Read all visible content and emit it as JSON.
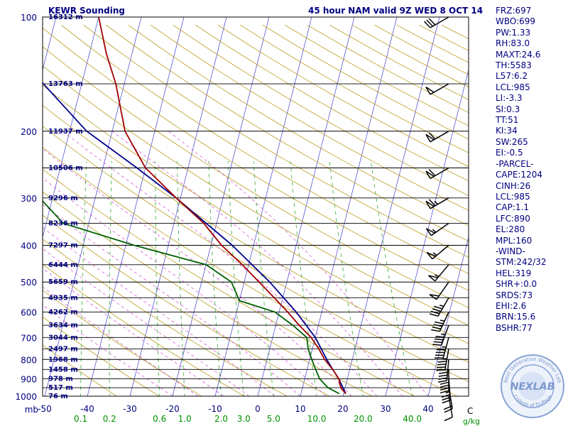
{
  "header": {
    "station": "KEWR Sounding",
    "valid": "45 hour NAM valid 9Z WED  8 OCT 14"
  },
  "indices": [
    "FRZ:697",
    "WBO:699",
    "PW:1.33",
    "RH:83.0",
    "MAXT:24.6",
    "TH:5583",
    "L57:6.2",
    "LCL:985",
    "LI:-3.3",
    "SI:0.3",
    "TT:51",
    "KI:34",
    "SW:265",
    "EI:-0.5",
    "-PARCEL-",
    "CAPE:1204",
    "CINH:26",
    "LCL:985",
    "CAP:1.1",
    "LFC:890",
    "EL:280",
    "MPL:160",
    "-WIND-",
    "STM:242/32",
    "HEL:319",
    "SHR+:0.0",
    "SRDS:73",
    "EHI:2.6",
    "BRN:15.6",
    "BSHR:77"
  ],
  "logo": {
    "text": "NEXLAB",
    "ring_top": "Next Generation Weather Lab",
    "ring_bottom": "College of DuPage"
  },
  "colors": {
    "temperature": "#a00000",
    "dewpoint": "#006000",
    "parcel": "#00008c",
    "isotherm": "#4040d0",
    "dry_adiabat": "#b09000",
    "mixing_ratio": "#33aa33",
    "moist_adiabat": "#d040d0",
    "text": "#000080",
    "tick_green": "#009000"
  },
  "chart_data": {
    "type": "skew-t",
    "pressure_unit_label": "mb",
    "pressure_ticks": [
      100,
      200,
      300,
      400,
      500,
      600,
      700,
      800,
      900,
      1000
    ],
    "temperature_ticks": [
      -50,
      -40,
      -30,
      -20,
      -10,
      0,
      10,
      20,
      30,
      40
    ],
    "mixing_ratio_label": "g/kg",
    "mixing_ratio_ticks": [
      "0.1",
      "0.2",
      "0.6",
      "1.0",
      "2.0",
      "3.0",
      "5.0",
      "10.0",
      "20.0",
      "40.0"
    ],
    "heights": [
      {
        "p": 100,
        "label": "16312 m"
      },
      {
        "p": 150,
        "label": "13763 m"
      },
      {
        "p": 200,
        "label": "11937 m"
      },
      {
        "p": 250,
        "label": "10506 m"
      },
      {
        "p": 300,
        "label": "9296 m"
      },
      {
        "p": 350,
        "label": "8236 m"
      },
      {
        "p": 400,
        "label": "7297 m"
      },
      {
        "p": 450,
        "label": "6444 m"
      },
      {
        "p": 500,
        "label": "5659 m"
      },
      {
        "p": 550,
        "label": "4935 m"
      },
      {
        "p": 600,
        "label": "4262 m"
      },
      {
        "p": 650,
        "label": "3634 m"
      },
      {
        "p": 700,
        "label": "3044 m"
      },
      {
        "p": 750,
        "label": "2497 m"
      },
      {
        "p": 800,
        "label": "1968 m"
      },
      {
        "p": 850,
        "label": "1458 m"
      },
      {
        "p": 900,
        "label": "978 m"
      },
      {
        "p": 950,
        "label": "517 m"
      },
      {
        "p": 1000,
        "label": "76 m"
      }
    ],
    "temperature": [
      {
        "p": 985,
        "t": 20.5
      },
      {
        "p": 950,
        "t": 19
      },
      {
        "p": 900,
        "t": 18
      },
      {
        "p": 850,
        "t": 16
      },
      {
        "p": 800,
        "t": 13.5
      },
      {
        "p": 750,
        "t": 11.5
      },
      {
        "p": 700,
        "t": 9
      },
      {
        "p": 650,
        "t": 5.5
      },
      {
        "p": 600,
        "t": 2
      },
      {
        "p": 550,
        "t": -2
      },
      {
        "p": 500,
        "t": -6.5
      },
      {
        "p": 450,
        "t": -11.5
      },
      {
        "p": 400,
        "t": -17.5
      },
      {
        "p": 350,
        "t": -23
      },
      {
        "p": 300,
        "t": -31
      },
      {
        "p": 250,
        "t": -40
      },
      {
        "p": 200,
        "t": -47
      },
      {
        "p": 150,
        "t": -52
      },
      {
        "p": 125,
        "t": -56
      },
      {
        "p": 100,
        "t": -60
      }
    ],
    "dewpoint": [
      {
        "p": 985,
        "td": 19
      },
      {
        "p": 950,
        "td": 16
      },
      {
        "p": 900,
        "td": 13.5
      },
      {
        "p": 850,
        "td": 12
      },
      {
        "p": 800,
        "td": 10.5
      },
      {
        "p": 750,
        "td": 9
      },
      {
        "p": 700,
        "td": 8
      },
      {
        "p": 650,
        "td": 4
      },
      {
        "p": 600,
        "td": -1
      },
      {
        "p": 560,
        "td": -10
      },
      {
        "p": 500,
        "td": -13
      },
      {
        "p": 450,
        "td": -20
      },
      {
        "p": 400,
        "td": -38
      },
      {
        "p": 350,
        "td": -56
      },
      {
        "p": 300,
        "td": -63
      }
    ],
    "parcel": [
      {
        "p": 985,
        "t": 20.5
      },
      {
        "p": 950,
        "t": 19.5
      },
      {
        "p": 900,
        "t": 18
      },
      {
        "p": 850,
        "t": 16
      },
      {
        "p": 800,
        "t": 14
      },
      {
        "p": 700,
        "t": 10
      },
      {
        "p": 600,
        "t": 4
      },
      {
        "p": 500,
        "t": -4
      },
      {
        "p": 400,
        "t": -15
      },
      {
        "p": 300,
        "t": -31
      },
      {
        "p": 250,
        "t": -42
      },
      {
        "p": 200,
        "t": -56
      },
      {
        "p": 150,
        "t": -69
      },
      {
        "p": 100,
        "t": -88
      }
    ],
    "wind_barbs": [
      {
        "p": 100,
        "dir": 240,
        "spd": 30
      },
      {
        "p": 150,
        "dir": 240,
        "spd": 50
      },
      {
        "p": 200,
        "dir": 240,
        "spd": 60
      },
      {
        "p": 250,
        "dir": 240,
        "spd": 60
      },
      {
        "p": 300,
        "dir": 240,
        "spd": 65
      },
      {
        "p": 350,
        "dir": 235,
        "spd": 55
      },
      {
        "p": 400,
        "dir": 230,
        "spd": 55
      },
      {
        "p": 450,
        "dir": 220,
        "spd": 55
      },
      {
        "p": 500,
        "dir": 215,
        "spd": 50
      },
      {
        "p": 550,
        "dir": 210,
        "spd": 45
      },
      {
        "p": 600,
        "dir": 205,
        "spd": 45
      },
      {
        "p": 650,
        "dir": 200,
        "spd": 45
      },
      {
        "p": 700,
        "dir": 195,
        "spd": 45
      },
      {
        "p": 750,
        "dir": 190,
        "spd": 45
      },
      {
        "p": 800,
        "dir": 185,
        "spd": 45
      },
      {
        "p": 850,
        "dir": 180,
        "spd": 40
      },
      {
        "p": 900,
        "dir": 175,
        "spd": 35
      },
      {
        "p": 950,
        "dir": 170,
        "spd": 20
      },
      {
        "p": 1000,
        "dir": 170,
        "spd": 10
      }
    ],
    "calm_label": "C"
  }
}
